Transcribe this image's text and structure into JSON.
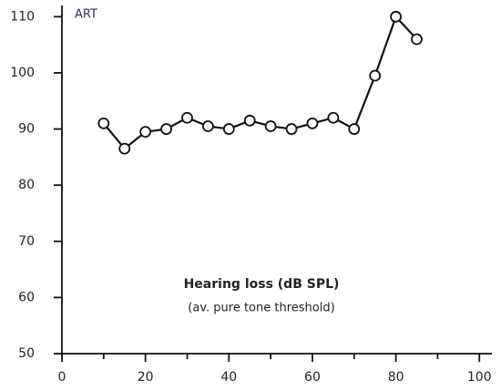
{
  "chart_data": {
    "type": "line",
    "ylabel": "ART",
    "xlabel": "Hearing loss (dB SPL)",
    "xlabel_note": "(av. pure tone threshold)",
    "x": [
      10,
      15,
      20,
      25,
      30,
      35,
      40,
      45,
      50,
      55,
      60,
      65,
      70,
      75,
      80,
      85
    ],
    "series": [
      {
        "color": "#111111",
        "values": [
          91,
          86.5,
          89.5,
          90,
          92,
          90.5,
          90,
          91.5,
          90.5,
          90,
          91,
          92,
          90,
          99.5,
          110,
          106
        ]
      }
    ],
    "xlim": [
      0,
      103
    ],
    "xticks": [
      0,
      20,
      40,
      60,
      80,
      100
    ],
    "xminor_ticks": [
      10,
      30,
      50,
      70,
      90
    ],
    "ylim": [
      50,
      112
    ],
    "yticks": [
      50,
      60,
      70,
      80,
      90,
      100,
      110
    ]
  }
}
